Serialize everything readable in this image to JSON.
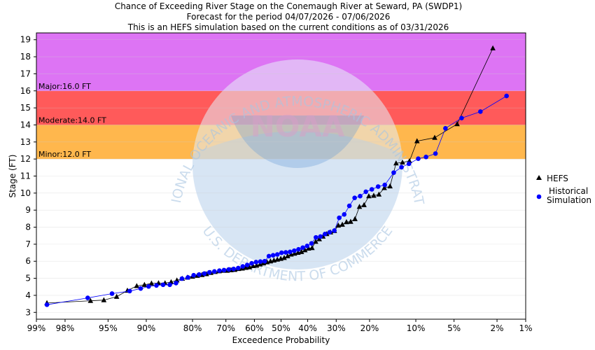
{
  "chart_data": {
    "type": "line",
    "title_lines": [
      "Chance of Exceeding River Stage  on the Conemaugh River at Seward, PA (SWDP1)",
      "Forecast for the period 04/07/2026 - 07/06/2026",
      "This is an HEFS simulation based on the current conditions as of 03/31/2026"
    ],
    "xlabel": "Exceedence Probability",
    "ylabel": "Stage (FT)",
    "x_scale": "normal-probability (reversed)",
    "x_ticks": [
      99,
      98,
      95,
      90,
      80,
      70,
      60,
      50,
      40,
      30,
      20,
      10,
      5,
      2,
      1
    ],
    "x_tick_labels": [
      "99%",
      "98%",
      "95%",
      "90%",
      "80%",
      "70%",
      "60%",
      "50%",
      "40%",
      "30%",
      "20%",
      "10%",
      "5%",
      "2%",
      "1%"
    ],
    "ylim": [
      2.6,
      19.4
    ],
    "y_ticks": [
      3,
      4,
      5,
      6,
      7,
      8,
      9,
      10,
      11,
      12,
      13,
      14,
      15,
      16,
      17,
      18,
      19
    ],
    "flood_bands": [
      {
        "label": "Minor:12.0 FT",
        "from": 12.0,
        "to": 14.0,
        "color": "#ffb74d"
      },
      {
        "label": "Moderate:14.0 FT",
        "from": 14.0,
        "to": 16.0,
        "color": "#ff5a5a"
      },
      {
        "label": "Major:16.0 FT",
        "from": 16.0,
        "to": 19.4,
        "color": "#dd74f4"
      }
    ],
    "series": [
      {
        "name": "HEFS",
        "color": "#000000",
        "marker": "triangle",
        "points": [
          [
            98.7,
            3.55
          ],
          [
            96.5,
            3.68
          ],
          [
            95.4,
            3.72
          ],
          [
            94.1,
            3.92
          ],
          [
            92.8,
            4.28
          ],
          [
            91.5,
            4.55
          ],
          [
            90.3,
            4.62
          ],
          [
            89.1,
            4.7
          ],
          [
            87.8,
            4.72
          ],
          [
            86.5,
            4.72
          ],
          [
            85.2,
            4.78
          ],
          [
            83.9,
            4.88
          ],
          [
            82.6,
            4.98
          ],
          [
            81.3,
            5.05
          ],
          [
            80,
            5.1
          ],
          [
            78.7,
            5.15
          ],
          [
            77.4,
            5.2
          ],
          [
            76.1,
            5.25
          ],
          [
            74.8,
            5.32
          ],
          [
            73.5,
            5.38
          ],
          [
            72.2,
            5.42
          ],
          [
            70.9,
            5.45
          ],
          [
            69.6,
            5.45
          ],
          [
            68.3,
            5.48
          ],
          [
            67,
            5.5
          ],
          [
            65.7,
            5.55
          ],
          [
            64.4,
            5.58
          ],
          [
            63.1,
            5.62
          ],
          [
            61.8,
            5.65
          ],
          [
            60.5,
            5.72
          ],
          [
            59.2,
            5.75
          ],
          [
            57.9,
            5.82
          ],
          [
            56.6,
            5.88
          ],
          [
            55.3,
            5.95
          ],
          [
            54,
            6
          ],
          [
            52.7,
            6.05
          ],
          [
            51.4,
            6.1
          ],
          [
            50.1,
            6.15
          ],
          [
            48.8,
            6.2
          ],
          [
            47.5,
            6.3
          ],
          [
            46.2,
            6.4
          ],
          [
            44.9,
            6.45
          ],
          [
            43.6,
            6.5
          ],
          [
            42.3,
            6.55
          ],
          [
            41,
            6.65
          ],
          [
            39.7,
            6.75
          ],
          [
            38.4,
            6.78
          ],
          [
            37.1,
            7.15
          ],
          [
            35.8,
            7.3
          ],
          [
            34.5,
            7.45
          ],
          [
            33.2,
            7.6
          ],
          [
            31.9,
            7.7
          ],
          [
            30.6,
            7.78
          ],
          [
            29.3,
            8.1
          ],
          [
            28,
            8.15
          ],
          [
            26.7,
            8.3
          ],
          [
            25.4,
            8.32
          ],
          [
            24.1,
            8.48
          ],
          [
            22.8,
            9.2
          ],
          [
            21.5,
            9.3
          ],
          [
            20.2,
            9.82
          ],
          [
            18.9,
            9.85
          ],
          [
            17.6,
            9.92
          ],
          [
            16.3,
            10.3
          ],
          [
            15,
            10.4
          ],
          [
            13.7,
            11.75
          ],
          [
            12.4,
            11.8
          ],
          [
            11.1,
            11.88
          ],
          [
            9.8,
            13.05
          ],
          [
            7.2,
            13.25
          ],
          [
            4.7,
            14.05
          ],
          [
            2.2,
            18.5
          ]
        ]
      },
      {
        "name": "Historical Simulation",
        "color": "#0000ff",
        "marker": "circle",
        "points": [
          [
            98.7,
            3.45
          ],
          [
            96.7,
            3.85
          ],
          [
            94.6,
            4.1
          ],
          [
            92.5,
            4.25
          ],
          [
            90.9,
            4.4
          ],
          [
            89.6,
            4.52
          ],
          [
            88.2,
            4.58
          ],
          [
            86.9,
            4.62
          ],
          [
            85.5,
            4.62
          ],
          [
            84.1,
            4.72
          ],
          [
            82.7,
            4.98
          ],
          [
            81.2,
            5.05
          ],
          [
            79.7,
            5.18
          ],
          [
            78.2,
            5.22
          ],
          [
            76.7,
            5.28
          ],
          [
            75.2,
            5.35
          ],
          [
            73.7,
            5.4
          ],
          [
            72.1,
            5.45
          ],
          [
            70.6,
            5.48
          ],
          [
            69,
            5.52
          ],
          [
            67.4,
            5.55
          ],
          [
            65.8,
            5.6
          ],
          [
            64.2,
            5.7
          ],
          [
            62.6,
            5.78
          ],
          [
            61,
            5.88
          ],
          [
            59.4,
            5.95
          ],
          [
            57.8,
            5.98
          ],
          [
            56.2,
            6
          ],
          [
            54.6,
            6.3
          ],
          [
            53,
            6.35
          ],
          [
            51.4,
            6.4
          ],
          [
            49.8,
            6.5
          ],
          [
            48.2,
            6.52
          ],
          [
            46.6,
            6.55
          ],
          [
            45,
            6.62
          ],
          [
            43.4,
            6.7
          ],
          [
            41.8,
            6.8
          ],
          [
            40.2,
            6.9
          ],
          [
            38.6,
            7.05
          ],
          [
            37,
            7.4
          ],
          [
            35.4,
            7.45
          ],
          [
            33.8,
            7.6
          ],
          [
            32.2,
            7.7
          ],
          [
            30.6,
            7.8
          ],
          [
            29,
            8.55
          ],
          [
            27.4,
            8.75
          ],
          [
            25.8,
            9.25
          ],
          [
            24.2,
            9.72
          ],
          [
            22.6,
            9.82
          ],
          [
            21,
            10.08
          ],
          [
            19.4,
            10.22
          ],
          [
            17.8,
            10.38
          ],
          [
            16.2,
            10.48
          ],
          [
            14.2,
            11.2
          ],
          [
            12.6,
            11.52
          ],
          [
            11.2,
            11.72
          ],
          [
            9.6,
            12.02
          ],
          [
            8.4,
            12.12
          ],
          [
            7.1,
            12.32
          ],
          [
            5.9,
            13.8
          ],
          [
            4.3,
            14.4
          ],
          [
            2.9,
            14.78
          ],
          [
            1.6,
            15.7
          ]
        ]
      }
    ],
    "legend": {
      "position": "right",
      "entries": [
        "HEFS",
        "Historical\nSimulation"
      ]
    },
    "watermark_text": "NOAA",
    "watermark_ring_text": "NATIONAL OCEANIC AND ATMOSPHERIC ADMINISTRATION",
    "watermark_bottom_text": "U.S. DEPARTMENT OF COMMERCE"
  }
}
